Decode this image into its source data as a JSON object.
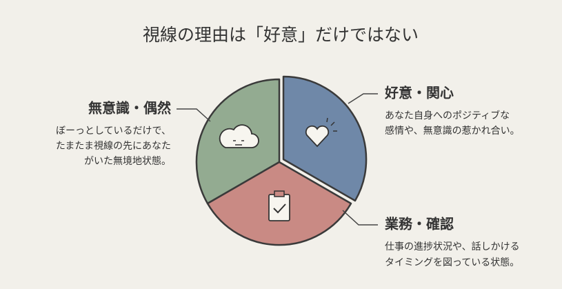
{
  "title": "視線の理由は「好意」だけではない",
  "segments": [
    {
      "label": "好意・関心",
      "description": [
        "あなた自身へのポジティブな",
        "感情や、無意識の惹かれ合い。"
      ]
    },
    {
      "label": "業務・確認",
      "description": [
        "仕事の進捗状況や、話しかける",
        "タイミングを図っている状態。"
      ]
    },
    {
      "label": "無意識・偶然",
      "description": [
        "ぼーっとしているだけで、",
        "たまたま視線の先にあなた",
        "がいた無境地状態。"
      ]
    }
  ]
}
